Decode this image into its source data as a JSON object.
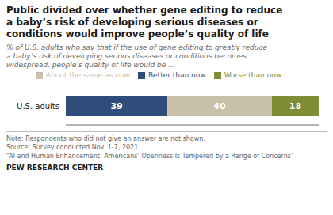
{
  "chart_data": {
    "type": "bar",
    "orientation": "horizontal",
    "stacked": true,
    "title": "Public divided over whether gene editing to reduce\na baby’s risk of developing serious diseases or\nconditions would improve people’s quality of life",
    "subtitle": "% of U.S. adults who say that if the use of gene editing to greatly reduce\na baby’s risk of developing serious diseases or conditions becomes\nwidespread, people’s quality of life would be …",
    "categories": [
      "U.S. adults"
    ],
    "series": [
      {
        "name": "Better than now",
        "color": "#2E4D7B",
        "values": [
          39
        ]
      },
      {
        "name": "About the same as now",
        "color": "#C9C0AA",
        "values": [
          40
        ]
      },
      {
        "name": "Worse than now",
        "color": "#7D8C35",
        "values": [
          18
        ]
      }
    ],
    "xlim": [
      0,
      97
    ],
    "data_labels": true,
    "tick_labels": "y",
    "grid": false,
    "legend": "top",
    "annotations": [
      "Note: Respondents who did not give an answer are not shown.",
      "Source: Survey conducted Nov. 1-7, 2021.",
      "“AI and Human Enhancement: Americans’ Openness Is Tempered by a Range of Concerns”",
      "PEW RESEARCH CENTER"
    ]
  }
}
